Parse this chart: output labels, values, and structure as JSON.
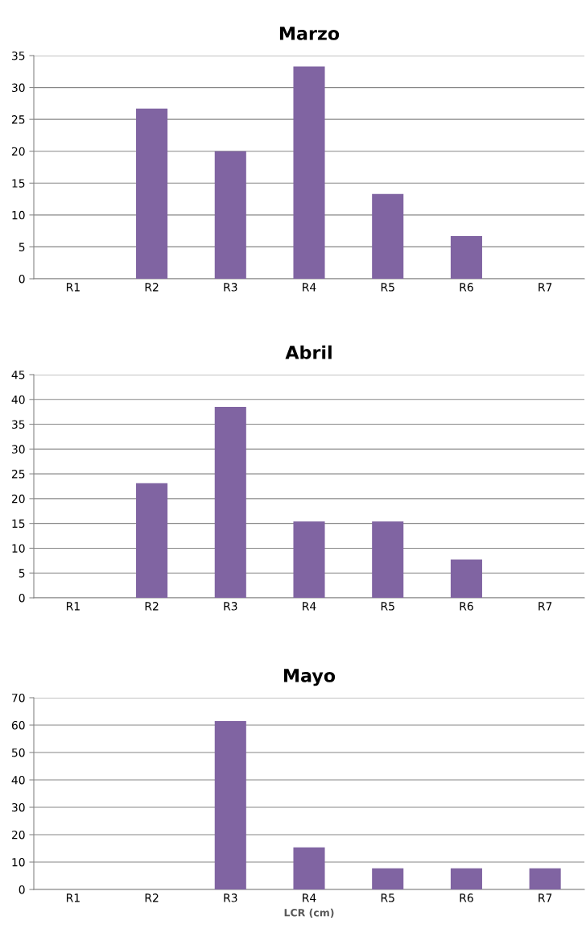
{
  "chart_data": [
    {
      "type": "bar",
      "title": "Marzo",
      "categories": [
        "R1",
        "R2",
        "R3",
        "R4",
        "R5",
        "R6",
        "R7"
      ],
      "color": "#8064a2",
      "values": [
        0,
        26.7,
        20,
        33.3,
        13.3,
        6.7,
        0
      ],
      "ylim": [
        0,
        35
      ],
      "yticks": [
        0,
        5,
        10,
        15,
        20,
        25,
        30,
        35
      ],
      "grid": "y"
    },
    {
      "type": "bar",
      "title": "Abril",
      "categories": [
        "R1",
        "R2",
        "R3",
        "R4",
        "R5",
        "R6",
        "R7"
      ],
      "color": "#8064a2",
      "values": [
        0,
        23.1,
        38.5,
        15.4,
        15.4,
        7.7,
        0
      ],
      "ylim": [
        0,
        45
      ],
      "yticks": [
        0,
        5,
        10,
        15,
        20,
        25,
        30,
        35,
        40,
        45
      ],
      "grid": "y"
    },
    {
      "type": "bar",
      "title": "Mayo",
      "xlabel": "LCR (cm)",
      "categories": [
        "R1",
        "R2",
        "R3",
        "R4",
        "R5",
        "R6",
        "R7"
      ],
      "color": "#8064a2",
      "values": [
        0,
        0,
        61.5,
        15.4,
        7.7,
        7.7,
        7.7
      ],
      "ylim": [
        0,
        70
      ],
      "yticks": [
        0,
        10,
        20,
        30,
        40,
        50,
        60,
        70
      ],
      "grid": "y"
    }
  ]
}
